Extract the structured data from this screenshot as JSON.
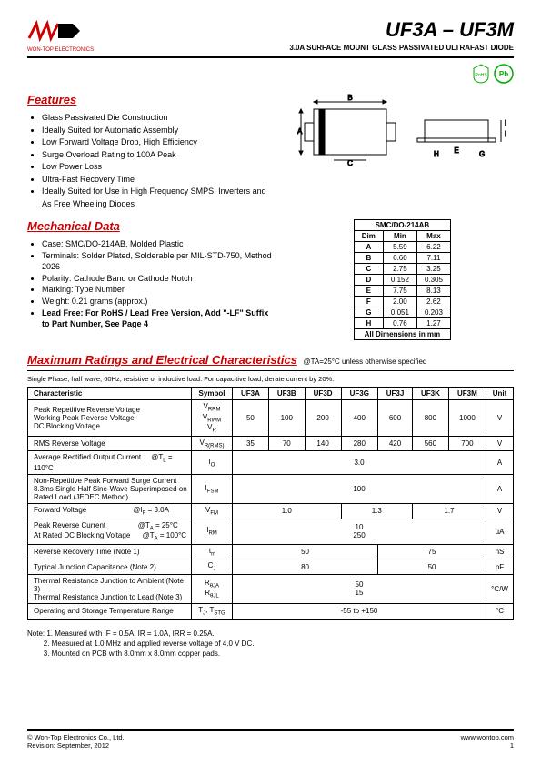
{
  "header": {
    "logo_text": "WON-TOP ELECTRONICS",
    "title": "UF3A – UF3M",
    "subtitle": "3.0A SURFACE MOUNT GLASS PASSIVATED ULTRAFAST DIODE"
  },
  "badges": {
    "rohs": "RoHS",
    "pb": "Pb"
  },
  "features": {
    "title": "Features",
    "items": [
      "Glass Passivated Die Construction",
      "Ideally Suited for Automatic Assembly",
      "Low Forward Voltage Drop, High Efficiency",
      "Surge Overload Rating to 100A Peak",
      "Low Power Loss",
      "Ultra-Fast Recovery Time",
      "Ideally Suited for Use in High Frequency SMPS, Inverters and As Free Wheeling Diodes"
    ]
  },
  "mech": {
    "title": "Mechanical Data",
    "items": [
      "Case: SMC/DO-214AB, Molded Plastic",
      "Terminals: Solder Plated, Solderable per MIL-STD-750, Method 2026",
      "Polarity: Cathode Band or Cathode Notch",
      "Marking: Type Number",
      "Weight: 0.21 grams (approx.)"
    ],
    "leadfree": "Lead Free: For RoHS / Lead Free Version, Add \"-LF\" Suffix to Part Number, See Page 4"
  },
  "dim_table": {
    "header": "SMC/DO-214AB",
    "cols": [
      "Dim",
      "Min",
      "Max"
    ],
    "rows": [
      [
        "A",
        "5.59",
        "6.22"
      ],
      [
        "B",
        "6.60",
        "7.11"
      ],
      [
        "C",
        "2.75",
        "3.25"
      ],
      [
        "D",
        "0.152",
        "0.305"
      ],
      [
        "E",
        "7.75",
        "8.13"
      ],
      [
        "F",
        "2.00",
        "2.62"
      ],
      [
        "G",
        "0.051",
        "0.203"
      ],
      [
        "H",
        "0.76",
        "1.27"
      ]
    ],
    "footer": "All Dimensions in mm"
  },
  "maxratings": {
    "title": "Maximum Ratings and Electrical Characteristics",
    "cond": "@TA=25°C unless otherwise specified",
    "note_line": "Single Phase, half wave, 60Hz, resistive or inductive load. For capacitive load, derate current by 20%.",
    "columns": [
      "Characteristic",
      "Symbol",
      "UF3A",
      "UF3B",
      "UF3D",
      "UF3G",
      "UF3J",
      "UF3K",
      "UF3M",
      "Unit"
    ]
  },
  "char_rows": {
    "r1": {
      "char": "Peak Repetitive Reverse Voltage<br>Working Peak Reverse Voltage<br>DC Blocking Voltage",
      "sym": "V<span class='sub'>RRM</span><br>V<span class='sub'>RWM</span><br>V<span class='sub'>R</span>",
      "vals": [
        "50",
        "100",
        "200",
        "400",
        "600",
        "800",
        "1000"
      ],
      "unit": "V"
    },
    "r2": {
      "char": "RMS Reverse Voltage",
      "sym": "V<span class='sub'>R(RMS)</span>",
      "vals": [
        "35",
        "70",
        "140",
        "280",
        "420",
        "560",
        "700"
      ],
      "unit": "V"
    },
    "r3": {
      "char": "Average Rectified Output Current &nbsp;&nbsp;&nbsp;&nbsp;@T<span class='sub'>L</span> = 110°C",
      "sym": "I<span class='sub'>O</span>",
      "val": "3.0",
      "unit": "A"
    },
    "r4": {
      "char": "Non-Repetitive Peak Forward Surge Current<br>8.3ms Single Half Sine-Wave Superimposed on<br>Rated Load (JEDEC Method)",
      "sym": "I<span class='sub'>FSM</span>",
      "val": "100",
      "unit": "A"
    },
    "r5": {
      "char": "Forward Voltage &nbsp;&nbsp;&nbsp;&nbsp;&nbsp;&nbsp;&nbsp;&nbsp;&nbsp;&nbsp;&nbsp;&nbsp;&nbsp;&nbsp;&nbsp;&nbsp;&nbsp;&nbsp;&nbsp;&nbsp;&nbsp;&nbsp;@I<span class='sub'>F</span> = 3.0A",
      "sym": "V<span class='sub'>FM</span>",
      "v1": "1.0",
      "v2": "1.3",
      "v3": "1.7",
      "unit": "V"
    },
    "r6": {
      "char": "Peak Reverse Current &nbsp;&nbsp;&nbsp;&nbsp;&nbsp;&nbsp;&nbsp;&nbsp;&nbsp;&nbsp;&nbsp;&nbsp;&nbsp;&nbsp;&nbsp;@T<span class='sub'>A</span> = 25°C<br>At Rated DC Blocking Voltage &nbsp;&nbsp;&nbsp;&nbsp;&nbsp;@T<span class='sub'>A</span> = 100°C",
      "sym": "I<span class='sub'>RM</span>",
      "val": "10<br>250",
      "unit": "µA"
    },
    "r7": {
      "char": "Reverse Recovery Time (Note 1)",
      "sym": "t<span class='sub'>rr</span>",
      "v1": "50",
      "v2": "75",
      "unit": "nS"
    },
    "r8": {
      "char": "Typical Junction Capacitance (Note 2)",
      "sym": "C<span class='sub'>J</span>",
      "v1": "80",
      "v2": "50",
      "unit": "pF"
    },
    "r9": {
      "char": "Thermal Resistance Junction to Ambient (Note 3)<br>Thermal Resistance Junction to Lead (Note 3)",
      "sym": "R<span class='sub'>θJA</span><br>R<span class='sub'>θJL</span>",
      "val": "50<br>15",
      "unit": "°C/W"
    },
    "r10": {
      "char": "Operating and Storage Temperature Range",
      "sym": "T<span class='sub'>J</span>, T<span class='sub'>STG</span>",
      "val": "-55 to +150",
      "unit": "°C"
    }
  },
  "notes": {
    "prefix": "Note:",
    "n1": "1. Measured with IF = 0.5A, IR = 1.0A, IRR = 0.25A.",
    "n2": "2. Measured at 1.0 MHz and applied reverse voltage of 4.0 V DC.",
    "n3": "3. Mounted on PCB with 8.0mm x 8.0mm copper pads."
  },
  "footer": {
    "copyright": "© Won-Top Electronics Co., Ltd.",
    "revision": "Revision: September, 2012",
    "url": "www.wontop.com",
    "page": "1"
  }
}
